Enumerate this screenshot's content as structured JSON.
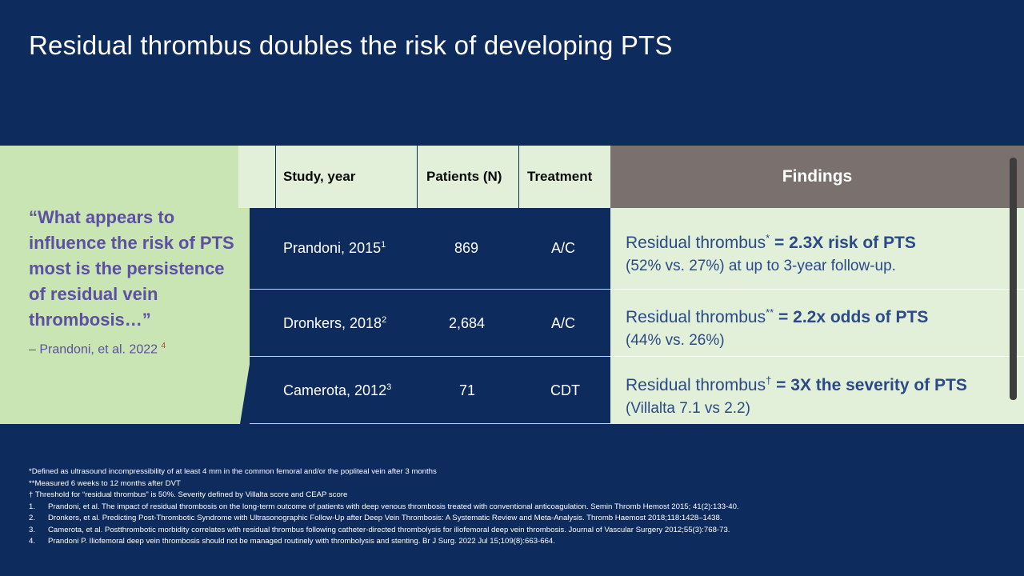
{
  "title": "Residual thrombus doubles the risk of developing PTS",
  "quote": {
    "text": "“What appears to influence the risk of PTS most is the persistence of residual vein thrombosis…”",
    "attribution": "– Prandoni, et al. 2022",
    "attribution_ref": "4"
  },
  "table": {
    "headers": {
      "study": "Study, year",
      "patients": "Patients (N)",
      "treatment": "Treatment",
      "findings": "Findings"
    },
    "rows": [
      {
        "study": "Prandoni, 2015",
        "ref": "1",
        "patients": "869",
        "treatment": "A/C",
        "finding_prefix": "Residual thrombus",
        "finding_mark": "*",
        "finding_bold": " = 2.3X risk of PTS",
        "finding_detail": "(52% vs. 27%) at up to 3-year follow-up."
      },
      {
        "study": "Dronkers, 2018",
        "ref": "2",
        "patients": "2,684",
        "treatment": "A/C",
        "finding_prefix": "Residual thrombus",
        "finding_mark": "**",
        "finding_bold": " = 2.2x odds of PTS",
        "finding_detail": "(44% vs. 26%)"
      },
      {
        "study": "Camerota, 2012",
        "ref": "3",
        "patients": "71",
        "treatment": "CDT",
        "finding_prefix": "Residual thrombus",
        "finding_mark": "†",
        "finding_bold": " = 3X the severity of PTS",
        "finding_detail": "(Villalta 7.1 vs 2.2)"
      }
    ]
  },
  "footnotes": [
    {
      "num": "",
      "text": "*Defined as ultrasound incompressibility of at least 4 mm in the common femoral and/or the popliteal vein after 3 months"
    },
    {
      "num": "",
      "text": "**Measured 6 weeks to 12 months after DVT"
    },
    {
      "num": "",
      "text": "† Threshold for “residual thrombus” is 50%. Severity defined by Villalta score and CEAP score"
    },
    {
      "num": "1.",
      "text": "Prandoni, et al. The impact of residual thrombosis on the long-term outcome of patients with deep venous thrombosis treated with conventional anticoagulation. Semin Thromb Hemost 2015; 41(2):133-40."
    },
    {
      "num": "2.",
      "text": "Dronkers, et al. Predicting Post-Thrombotic Syndrome with Ultrasonographic Follow-Up after Deep Vein Thrombosis: A Systematic Review and Meta-Analysis. Thromb Haemost 2018;118:1428–1438."
    },
    {
      "num": "3.",
      "text": "Camerota, et al. Postthrombotic morbidity correlates with residual thrombus following catheter-directed thrombolysis for iliofemoral deep vein thrombosis. Journal of Vascular Surgery 2012;55(3):768-73."
    },
    {
      "num": "4.",
      "text": "Prandoni P. Iliofemoral deep vein thrombosis should not be managed routinely with thrombolysis and stenting. Br J Surg. 2022 Jul 15;109(8):663-664."
    }
  ]
}
